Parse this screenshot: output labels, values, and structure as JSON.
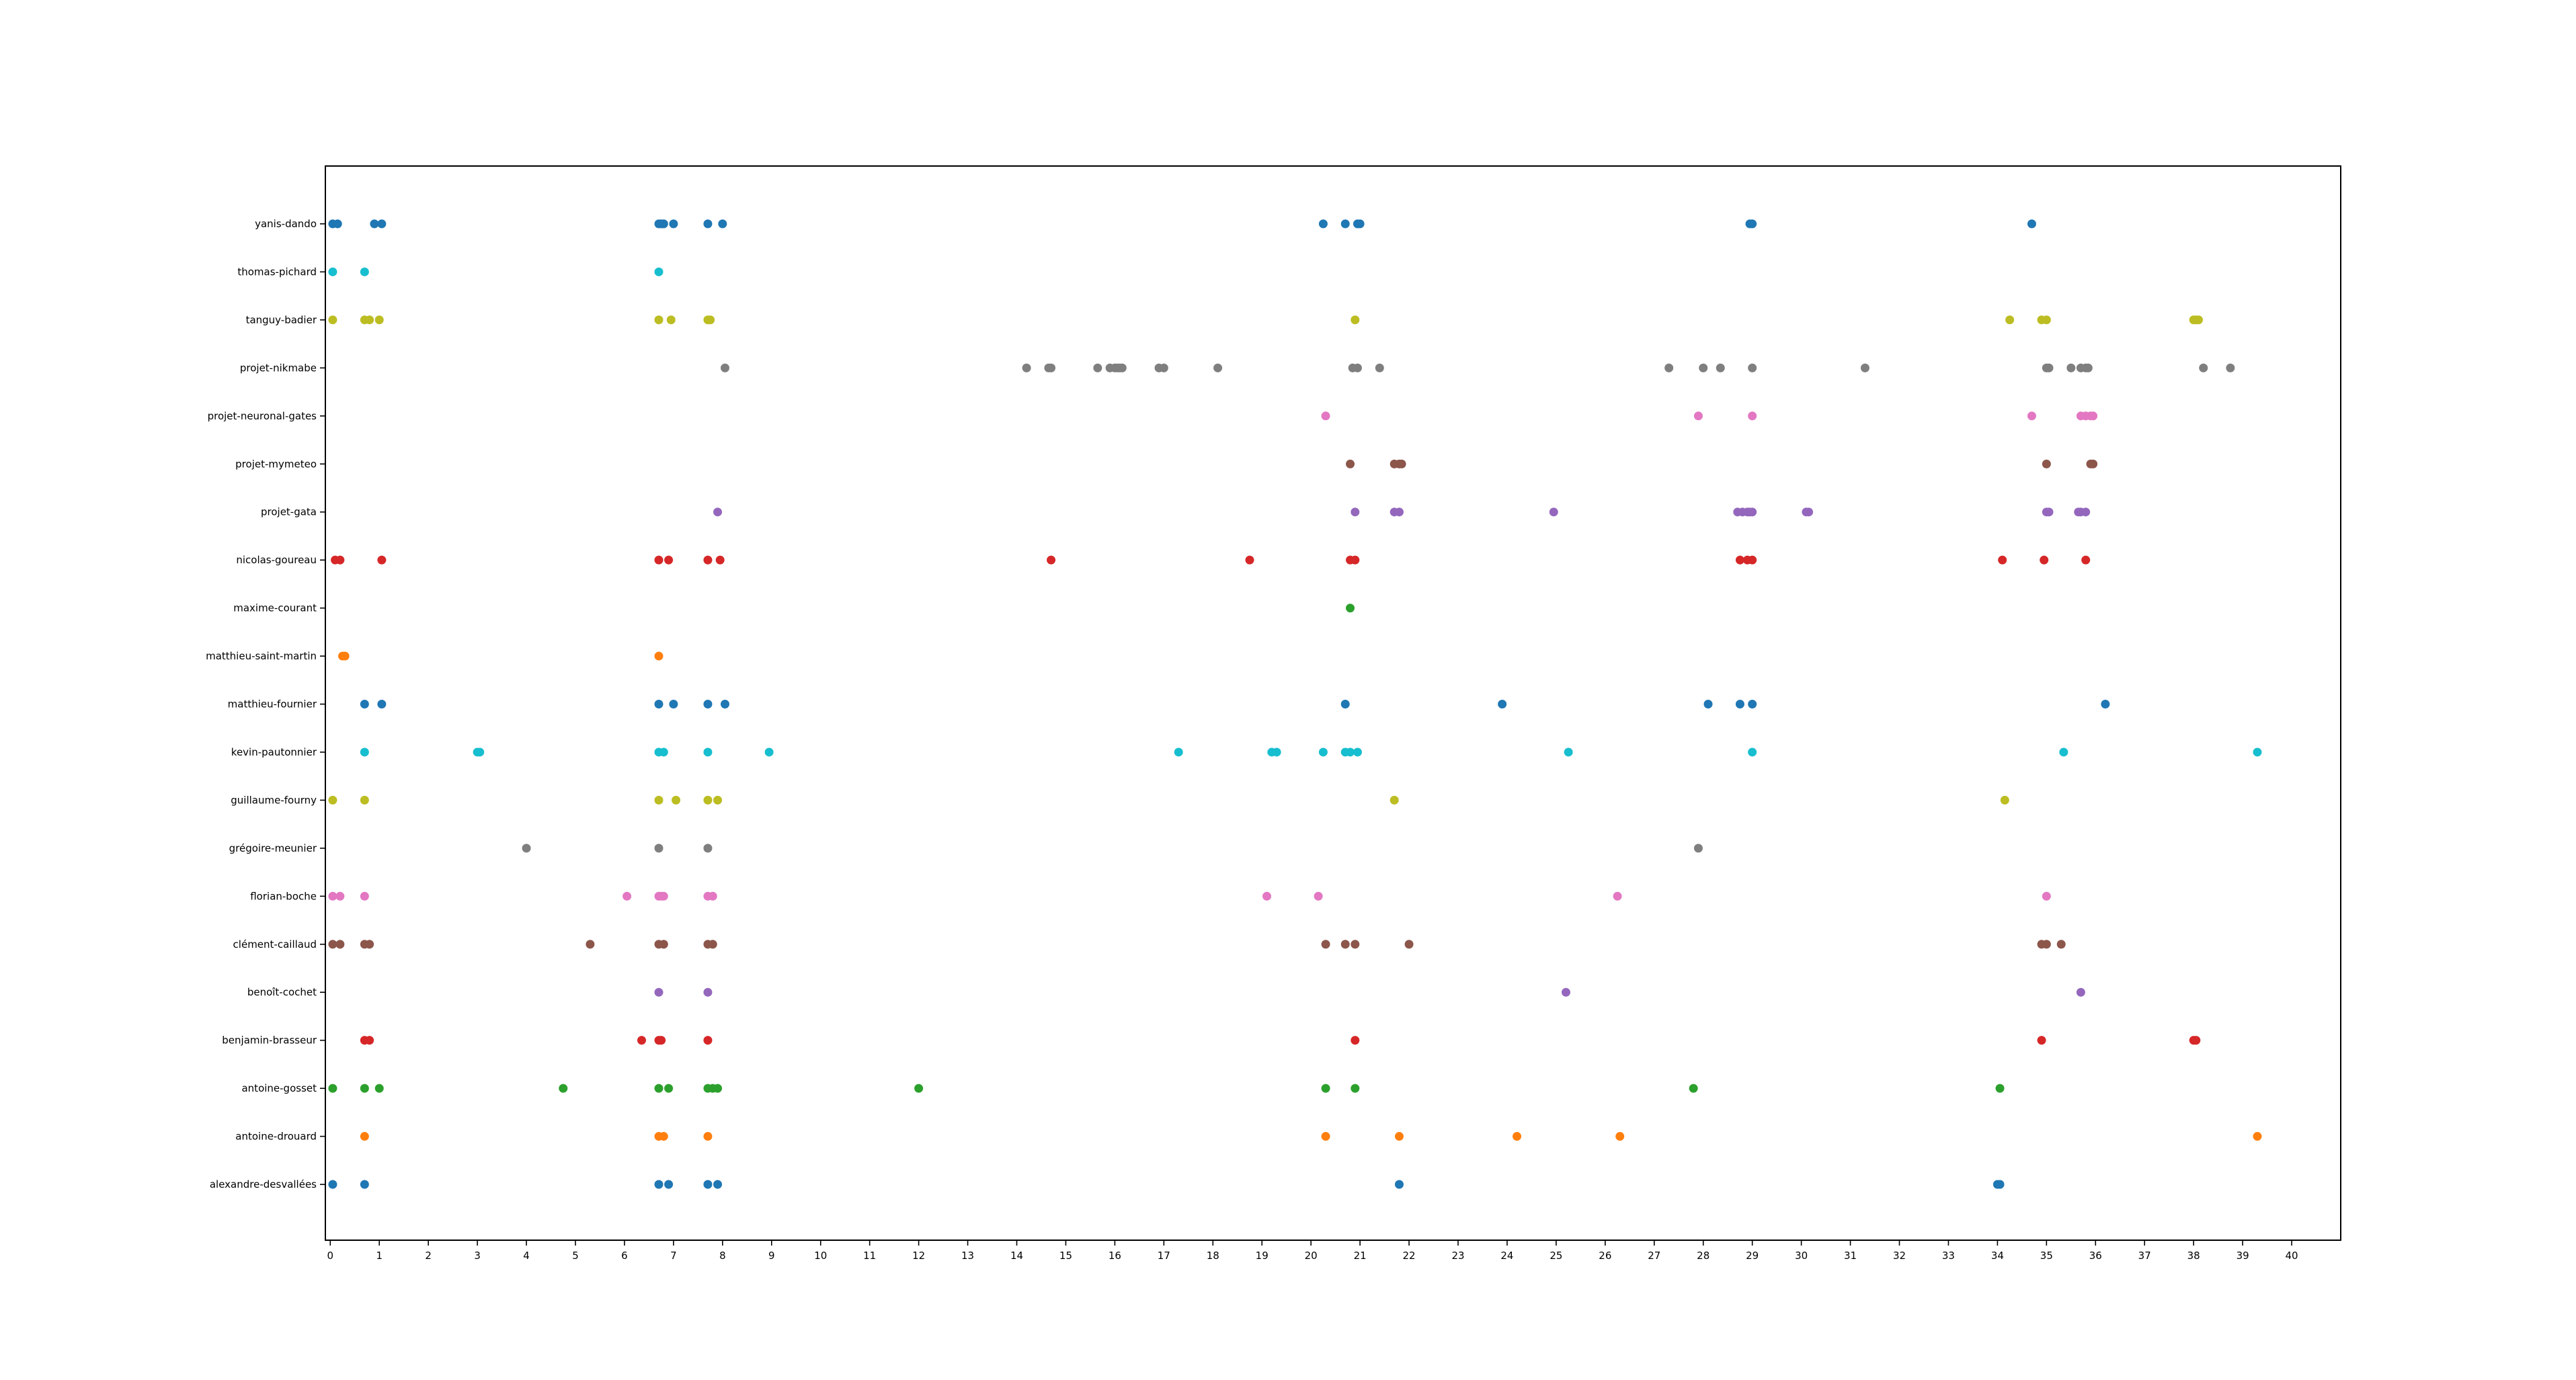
{
  "chart_data": {
    "type": "scatter",
    "title": "",
    "xlabel": "",
    "ylabel": "",
    "xlim": [
      -0.1,
      41
    ],
    "x_ticks": [
      0,
      1,
      2,
      3,
      4,
      5,
      6,
      7,
      8,
      9,
      10,
      11,
      12,
      13,
      14,
      15,
      16,
      17,
      18,
      19,
      20,
      21,
      22,
      23,
      24,
      25,
      26,
      27,
      28,
      29,
      30,
      31,
      32,
      33,
      34,
      35,
      36,
      37,
      38,
      39,
      40
    ],
    "grid": false,
    "legend": "none",
    "categories": [
      "alexandre-desvallées",
      "antoine-drouard",
      "antoine-gosset",
      "benjamin-brasseur",
      "benoît-cochet",
      "clément-caillaud",
      "florian-boche",
      "grégoire-meunier",
      "guillaume-fourny",
      "kevin-pautonnier",
      "matthieu-fournier",
      "matthieu-saint-martin",
      "maxime-courant",
      "nicolas-goureau",
      "projet-gata",
      "projet-mymeteo",
      "projet-neuronal-gates",
      "projet-nikmabe",
      "tanguy-badier",
      "thomas-pichard",
      "yanis-dando"
    ],
    "series": [
      {
        "category": "alexandre-desvallées",
        "color": "#1f77b4",
        "x": [
          0.05,
          0.7,
          6.7,
          6.9,
          7.7,
          7.9,
          21.8,
          34.0,
          34.05
        ]
      },
      {
        "category": "antoine-drouard",
        "color": "#ff7f0e",
        "x": [
          0.7,
          6.7,
          6.8,
          7.7,
          20.3,
          21.8,
          24.2,
          26.3,
          39.3
        ]
      },
      {
        "category": "antoine-gosset",
        "color": "#2ca02c",
        "x": [
          0.05,
          0.7,
          1.0,
          4.75,
          6.7,
          6.9,
          7.7,
          7.8,
          7.9,
          12.0,
          20.3,
          20.9,
          27.8,
          34.05
        ]
      },
      {
        "category": "benjamin-brasseur",
        "color": "#d62728",
        "x": [
          0.7,
          0.8,
          6.35,
          6.7,
          6.75,
          7.7,
          20.9,
          34.9,
          38.0,
          38.05
        ]
      },
      {
        "category": "benoît-cochet",
        "color": "#9467bd",
        "x": [
          6.7,
          7.7,
          25.2,
          35.7
        ]
      },
      {
        "category": "clément-caillaud",
        "color": "#8c564b",
        "x": [
          0.05,
          0.2,
          0.7,
          0.8,
          5.3,
          6.7,
          6.8,
          7.7,
          7.8,
          20.3,
          20.7,
          20.9,
          22.0,
          34.9,
          35.0,
          35.3
        ]
      },
      {
        "category": "florian-boche",
        "color": "#e377c2",
        "x": [
          0.05,
          0.2,
          0.7,
          6.05,
          6.7,
          6.75,
          6.8,
          7.7,
          7.8,
          19.1,
          20.15,
          26.25,
          35.0
        ]
      },
      {
        "category": "grégoire-meunier",
        "color": "#7f7f7f",
        "x": [
          4.0,
          6.7,
          7.7,
          27.9
        ]
      },
      {
        "category": "guillaume-fourny",
        "color": "#bcbd22",
        "x": [
          0.05,
          0.7,
          6.7,
          7.05,
          7.7,
          7.9,
          21.7,
          34.15
        ]
      },
      {
        "category": "kevin-pautonnier",
        "color": "#17becf",
        "x": [
          0.7,
          3.0,
          3.05,
          6.7,
          6.8,
          7.7,
          8.95,
          17.3,
          19.2,
          19.3,
          20.25,
          20.7,
          20.8,
          20.95,
          25.25,
          29.0,
          35.35,
          39.3
        ]
      },
      {
        "category": "matthieu-fournier",
        "color": "#1f77b4",
        "x": [
          0.7,
          1.05,
          6.7,
          7.0,
          7.7,
          8.05,
          20.7,
          23.9,
          28.1,
          28.75,
          29.0,
          36.2
        ]
      },
      {
        "category": "matthieu-saint-martin",
        "color": "#ff7f0e",
        "x": [
          0.25,
          0.3,
          6.7
        ]
      },
      {
        "category": "maxime-courant",
        "color": "#2ca02c",
        "x": [
          20.8
        ]
      },
      {
        "category": "nicolas-goureau",
        "color": "#d62728",
        "x": [
          0.1,
          0.2,
          1.05,
          6.7,
          6.9,
          7.7,
          7.95,
          14.7,
          18.75,
          20.8,
          20.9,
          28.75,
          28.9,
          29.0,
          34.1,
          34.95,
          35.8
        ]
      },
      {
        "category": "projet-gata",
        "color": "#9467bd",
        "x": [
          7.9,
          20.9,
          21.7,
          21.8,
          24.95,
          28.7,
          28.8,
          28.9,
          28.95,
          29.0,
          30.1,
          30.15,
          35.0,
          35.05,
          35.65,
          35.7,
          35.8
        ]
      },
      {
        "category": "projet-mymeteo",
        "color": "#8c564b",
        "x": [
          20.8,
          21.7,
          21.8,
          21.85,
          35.0,
          35.9,
          35.95
        ]
      },
      {
        "category": "projet-neuronal-gates",
        "color": "#e377c2",
        "x": [
          20.3,
          27.9,
          29.0,
          34.7,
          35.7,
          35.8,
          35.9,
          35.95
        ]
      },
      {
        "category": "projet-nikmabe",
        "color": "#7f7f7f",
        "x": [
          8.05,
          14.2,
          14.65,
          14.7,
          15.65,
          15.9,
          16.0,
          16.05,
          16.1,
          16.15,
          16.9,
          17.0,
          18.1,
          20.85,
          20.95,
          21.4,
          27.3,
          28.0,
          28.35,
          29.0,
          31.3,
          35.0,
          35.05,
          35.5,
          35.7,
          35.8,
          35.85,
          38.2,
          38.75
        ]
      },
      {
        "category": "tanguy-badier",
        "color": "#bcbd22",
        "x": [
          0.05,
          0.7,
          0.8,
          1.0,
          6.7,
          6.95,
          7.7,
          7.75,
          20.9,
          34.25,
          34.9,
          35.0,
          38.0,
          38.05,
          38.1
        ]
      },
      {
        "category": "thomas-pichard",
        "color": "#17becf",
        "x": [
          0.05,
          0.7,
          6.7
        ]
      },
      {
        "category": "yanis-dando",
        "color": "#1f77b4",
        "x": [
          0.05,
          0.15,
          0.9,
          1.05,
          6.7,
          6.75,
          6.8,
          7.0,
          7.7,
          8.0,
          20.25,
          20.7,
          20.95,
          21.0,
          28.95,
          29.0,
          34.7
        ]
      }
    ]
  }
}
